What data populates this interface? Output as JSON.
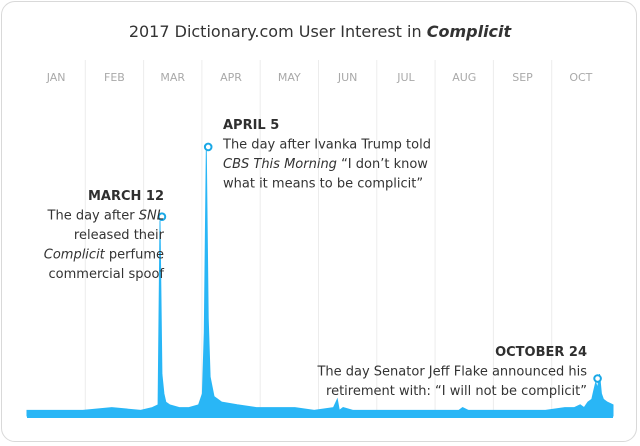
{
  "chart_data": {
    "type": "area",
    "title": "2017 Dictionary.com User Interest in",
    "title_emphasis": "Complicit",
    "months": [
      "JAN",
      "FEB",
      "MAR",
      "APR",
      "MAY",
      "JUN",
      "JUL",
      "AUG",
      "SEP",
      "OCT"
    ],
    "x_unit": "day of year 2017",
    "xlim": [
      1,
      305
    ],
    "ylim": [
      0,
      100
    ],
    "grid": "vertical month gridlines",
    "area_color": "#29b6f6",
    "marker_color": "#1aa8e6",
    "series": [
      {
        "x": [
          1,
          15,
          30,
          45,
          60,
          66,
          69,
          70,
          71,
          72,
          73,
          75,
          80,
          85,
          90,
          92,
          93,
          94,
          95,
          96,
          98,
          102,
          110,
          120,
          130,
          140,
          150,
          160,
          162,
          163,
          165,
          170,
          180,
          190,
          200,
          210,
          220,
          225,
          227,
          230,
          240,
          250,
          260,
          270,
          280,
          285,
          288,
          290,
          292,
          294,
          295,
          296,
          297,
          298,
          299,
          300,
          302,
          305
        ],
        "y": [
          2,
          2,
          2,
          3,
          2,
          3,
          4,
          70,
          15,
          8,
          5,
          4,
          3,
          3,
          4,
          8,
          30,
          95,
          35,
          14,
          7,
          5,
          4,
          3,
          3,
          3,
          2,
          3,
          6,
          2,
          3,
          2,
          2,
          2,
          2,
          2,
          2,
          2,
          3,
          2,
          2,
          2,
          2,
          2,
          3,
          3,
          4,
          3,
          5,
          6,
          9,
          12,
          10,
          15,
          8,
          6,
          5,
          4
        ]
      }
    ],
    "annotations": [
      {
        "x": 71,
        "y": 70,
        "heading": "MARCH 12",
        "lines": [
          [
            {
              "text": "The day after "
            },
            {
              "text": "SNL",
              "italic": true
            }
          ],
          [
            {
              "text": "released their"
            }
          ],
          [
            {
              "text": "Complicit",
              "italic": true
            },
            {
              "text": " perfume"
            }
          ],
          [
            {
              "text": "commercial spoof"
            }
          ]
        ],
        "align": "end"
      },
      {
        "x": 95,
        "y": 95,
        "heading": "APRIL 5",
        "lines": [
          [
            {
              "text": "The day after Ivanka Trump told"
            }
          ],
          [
            {
              "text": "CBS This Morning",
              "italic": true
            },
            {
              "text": " “I don’t know"
            }
          ],
          [
            {
              "text": "what it means to be complicit”"
            }
          ]
        ],
        "align": "start"
      },
      {
        "x": 297,
        "y": 12,
        "heading": "OCTOBER 24",
        "lines": [
          [
            {
              "text": "The day Senator Jeff Flake announced his"
            }
          ],
          [
            {
              "text": "retirement with: “I will not be complicit”"
            }
          ]
        ],
        "align": "end"
      }
    ]
  }
}
